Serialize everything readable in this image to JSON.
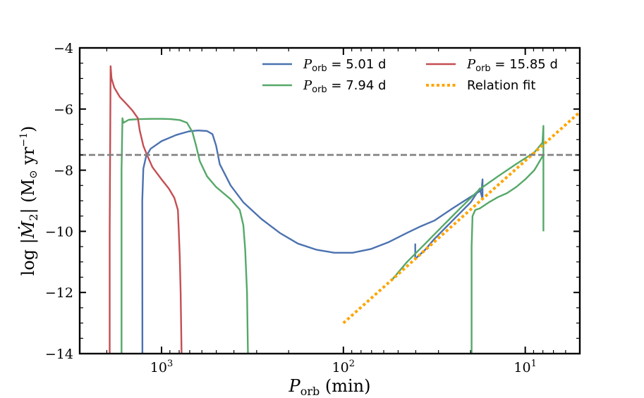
{
  "chart_data": {
    "type": "line",
    "title": "",
    "xlabel": {
      "main": "P",
      "sub": "orb",
      "unit": "(min)"
    },
    "ylabel": {
      "prefix": "log |",
      "var": "Ṁ",
      "sub": "2",
      "mid": "| (M",
      "sun": "⊙",
      "unit": " yr",
      "exp": "−1",
      "close": ")"
    },
    "xscale": "log",
    "x_inverted": true,
    "xlim_log10": [
      3.45,
      0.7
    ],
    "ylim": [
      -14,
      -4
    ],
    "xticks": [
      {
        "log10": 3,
        "base": "10",
        "exp": "3"
      },
      {
        "log10": 2,
        "base": "10",
        "exp": "2"
      },
      {
        "log10": 1,
        "base": "10",
        "exp": "1"
      }
    ],
    "yticks": [
      {
        "value": -4,
        "label": "−4"
      },
      {
        "value": -6,
        "label": "−6"
      },
      {
        "value": -8,
        "label": "−8"
      },
      {
        "value": -10,
        "label": "−10"
      },
      {
        "value": -12,
        "label": "−12"
      },
      {
        "value": -14,
        "label": "−14"
      }
    ],
    "hline": {
      "y": -7.5,
      "style": "dashed",
      "color": "#808080"
    },
    "series": [
      {
        "name": "P_orb = 5.01 d",
        "legend": {
          "var": "P",
          "sub": "orb",
          "rest": " = 5.01 d"
        },
        "color": "#4C72B0",
        "points_log10x": [
          [
            3.105,
            -14
          ],
          [
            3.106,
            -9.0
          ],
          [
            3.1,
            -7.95
          ],
          [
            3.085,
            -7.55
          ],
          [
            3.06,
            -7.3
          ],
          [
            3.0,
            -7.05
          ],
          [
            2.92,
            -6.85
          ],
          [
            2.85,
            -6.73
          ],
          [
            2.8,
            -6.7
          ],
          [
            2.75,
            -6.72
          ],
          [
            2.72,
            -6.82
          ],
          [
            2.7,
            -7.2
          ],
          [
            2.68,
            -7.8
          ],
          [
            2.62,
            -8.5
          ],
          [
            2.55,
            -9.05
          ],
          [
            2.45,
            -9.6
          ],
          [
            2.35,
            -10.05
          ],
          [
            2.25,
            -10.4
          ],
          [
            2.15,
            -10.6
          ],
          [
            2.05,
            -10.7
          ],
          [
            1.95,
            -10.7
          ],
          [
            1.85,
            -10.58
          ],
          [
            1.75,
            -10.35
          ],
          [
            1.65,
            -10.05
          ],
          [
            1.58,
            -9.85
          ],
          [
            1.5,
            -9.65
          ],
          [
            1.4,
            -9.25
          ],
          [
            1.3,
            -8.87
          ],
          [
            1.24,
            -8.65
          ],
          [
            1.235,
            -8.3
          ],
          [
            1.235,
            -8.95
          ],
          [
            1.25,
            -8.6
          ],
          [
            1.3,
            -9.05
          ],
          [
            1.4,
            -9.65
          ],
          [
            1.5,
            -10.25
          ],
          [
            1.55,
            -10.6
          ],
          [
            1.605,
            -10.9
          ],
          [
            1.605,
            -10.4
          ]
        ]
      },
      {
        "name": "P_orb = 7.94 d",
        "legend": {
          "var": "P",
          "sub": "orb",
          "rest": " = 7.94 d"
        },
        "color": "#55A868",
        "points_log10x": [
          [
            3.22,
            -14
          ],
          [
            3.22,
            -8.0
          ],
          [
            3.215,
            -6.3
          ],
          [
            3.21,
            -6.45
          ],
          [
            3.18,
            -6.35
          ],
          [
            3.12,
            -6.33
          ],
          [
            3.05,
            -6.32
          ],
          [
            3.0,
            -6.32
          ],
          [
            2.95,
            -6.33
          ],
          [
            2.9,
            -6.36
          ],
          [
            2.86,
            -6.45
          ],
          [
            2.83,
            -6.75
          ],
          [
            2.81,
            -7.2
          ],
          [
            2.79,
            -7.7
          ],
          [
            2.75,
            -8.2
          ],
          [
            2.7,
            -8.55
          ],
          [
            2.62,
            -8.95
          ],
          [
            2.57,
            -9.3
          ],
          [
            2.55,
            -9.8
          ],
          [
            2.54,
            -10.6
          ],
          [
            2.53,
            -12.0
          ],
          [
            2.525,
            -14
          ],
          null,
          [
            1.735,
            -11.6
          ],
          [
            1.65,
            -11.0
          ],
          [
            1.55,
            -10.4
          ],
          [
            1.45,
            -9.8
          ],
          [
            1.35,
            -9.2
          ],
          [
            1.25,
            -8.62
          ],
          [
            1.15,
            -8.2
          ],
          [
            1.05,
            -7.8
          ],
          [
            0.95,
            -7.42
          ],
          [
            0.905,
            -7.1
          ],
          [
            0.9,
            -6.55
          ],
          [
            0.9,
            -10.0
          ],
          null,
          [
            1.295,
            -14
          ],
          [
            1.295,
            -10.5
          ],
          [
            1.29,
            -9.5
          ],
          [
            1.275,
            -9.3
          ],
          [
            1.25,
            -9.25
          ],
          [
            1.2,
            -9.05
          ],
          [
            1.15,
            -8.88
          ],
          [
            1.1,
            -8.75
          ],
          [
            1.05,
            -8.55
          ],
          [
            1.0,
            -8.3
          ],
          [
            0.95,
            -8.0
          ],
          [
            0.9,
            -7.5
          ]
        ]
      },
      {
        "name": "P_orb = 15.85 d",
        "legend": {
          "var": "P",
          "sub": "orb",
          "rest": " = 15.85 d"
        },
        "color": "#C44E52",
        "points_log10x": [
          [
            3.285,
            -14
          ],
          [
            3.285,
            -10.0
          ],
          [
            3.28,
            -4.6
          ],
          [
            3.275,
            -5.0
          ],
          [
            3.26,
            -5.3
          ],
          [
            3.23,
            -5.6
          ],
          [
            3.19,
            -5.85
          ],
          [
            3.16,
            -6.05
          ],
          [
            3.13,
            -6.3
          ],
          [
            3.12,
            -6.7
          ],
          [
            3.1,
            -7.2
          ],
          [
            3.08,
            -7.5
          ],
          [
            3.05,
            -7.9
          ],
          [
            3.0,
            -8.3
          ],
          [
            2.96,
            -8.6
          ],
          [
            2.93,
            -8.9
          ],
          [
            2.91,
            -9.3
          ],
          [
            2.905,
            -10.0
          ],
          [
            2.9,
            -10.8
          ],
          [
            2.895,
            -12.0
          ],
          [
            2.89,
            -14
          ]
        ]
      },
      {
        "name": "Relation fit",
        "legend": {
          "var": "",
          "sub": "",
          "rest": "Relation fit"
        },
        "color": "#FFA500",
        "style": "dotted",
        "points_log10x": [
          [
            2.0,
            -13.0
          ],
          [
            0.7,
            -6.1
          ]
        ]
      }
    ],
    "legend_position": "top-right"
  }
}
